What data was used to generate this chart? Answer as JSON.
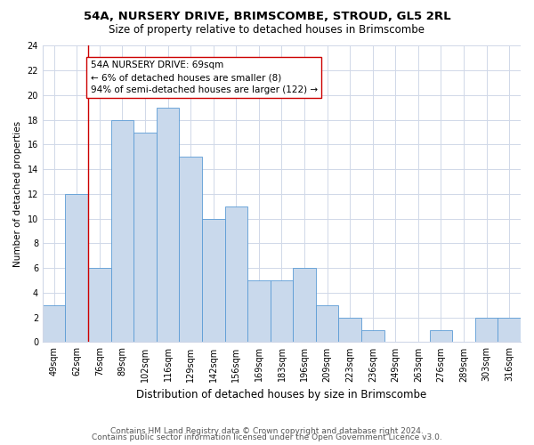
{
  "title1": "54A, NURSERY DRIVE, BRIMSCOMBE, STROUD, GL5 2RL",
  "title2": "Size of property relative to detached houses in Brimscombe",
  "xlabel": "Distribution of detached houses by size in Brimscombe",
  "ylabel": "Number of detached properties",
  "categories": [
    "49sqm",
    "62sqm",
    "76sqm",
    "89sqm",
    "102sqm",
    "116sqm",
    "129sqm",
    "142sqm",
    "156sqm",
    "169sqm",
    "183sqm",
    "196sqm",
    "209sqm",
    "223sqm",
    "236sqm",
    "249sqm",
    "263sqm",
    "276sqm",
    "289sqm",
    "303sqm",
    "316sqm"
  ],
  "values": [
    3,
    12,
    6,
    18,
    17,
    19,
    15,
    10,
    11,
    5,
    5,
    6,
    3,
    2,
    1,
    0,
    0,
    1,
    0,
    2,
    2
  ],
  "bar_color": "#c9d9ec",
  "bar_edge_color": "#5b9bd5",
  "vline_x": 1.5,
  "vline_color": "#cc0000",
  "annotation_text": "54A NURSERY DRIVE: 69sqm\n← 6% of detached houses are smaller (8)\n94% of semi-detached houses are larger (122) →",
  "annotation_box_color": "#ffffff",
  "annotation_box_edge": "#cc0000",
  "ylim": [
    0,
    24
  ],
  "yticks": [
    0,
    2,
    4,
    6,
    8,
    10,
    12,
    14,
    16,
    18,
    20,
    22,
    24
  ],
  "footer1": "Contains HM Land Registry data © Crown copyright and database right 2024.",
  "footer2": "Contains public sector information licensed under the Open Government Licence v3.0.",
  "bg_color": "#ffffff",
  "grid_color": "#d0d8e8",
  "title1_fontsize": 9.5,
  "title2_fontsize": 8.5,
  "xlabel_fontsize": 8.5,
  "ylabel_fontsize": 7.5,
  "tick_fontsize": 7,
  "annot_fontsize": 7.5,
  "footer_fontsize": 6.5
}
